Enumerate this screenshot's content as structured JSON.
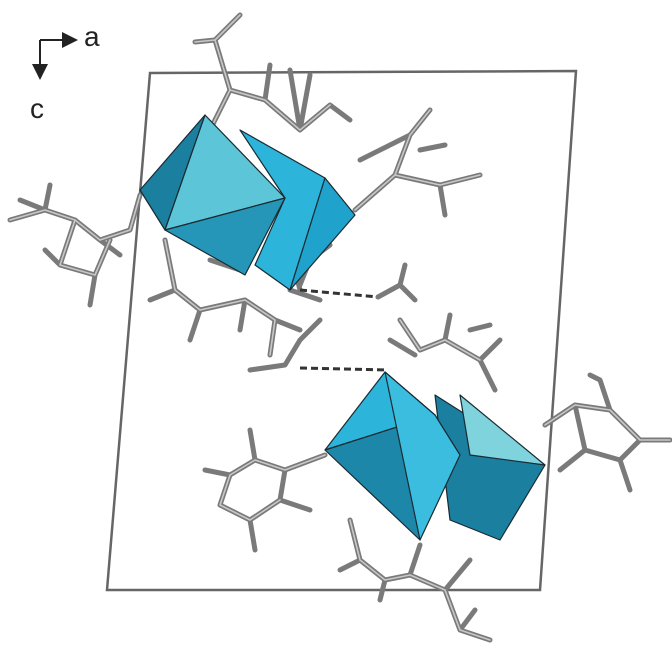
{
  "axes": {
    "horizontal": "a",
    "vertical": "c"
  }
}
